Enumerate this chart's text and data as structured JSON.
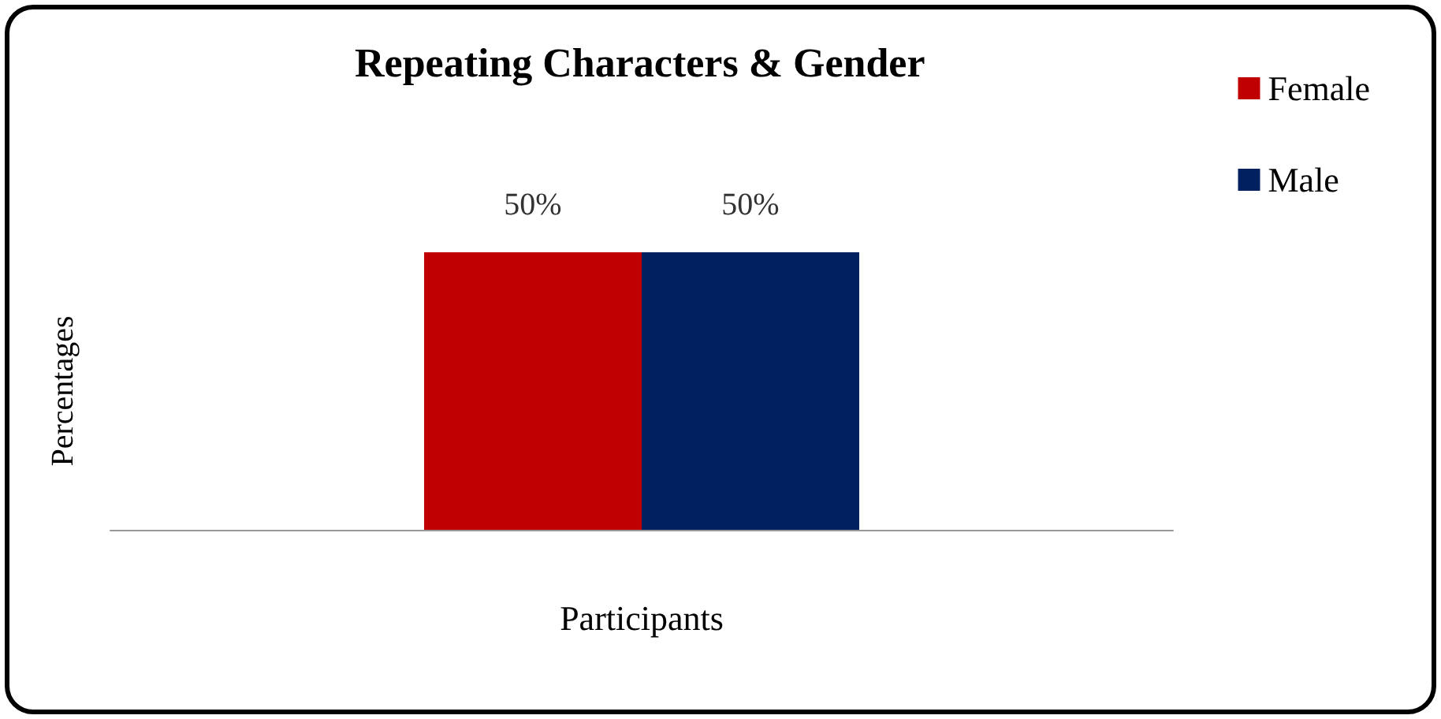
{
  "chart_data": {
    "type": "bar",
    "title": "Repeating Characters & Gender",
    "xlabel": "Participants",
    "ylabel": "Percentages",
    "categories": [
      null
    ],
    "series": [
      {
        "name": "Female",
        "color": "#c00000",
        "values": [
          50
        ],
        "value_labels": [
          "50%"
        ]
      },
      {
        "name": "Male",
        "color": "#002060",
        "values": [
          50
        ],
        "value_labels": [
          "50%"
        ]
      }
    ],
    "legend": "top right",
    "grid": false
  }
}
